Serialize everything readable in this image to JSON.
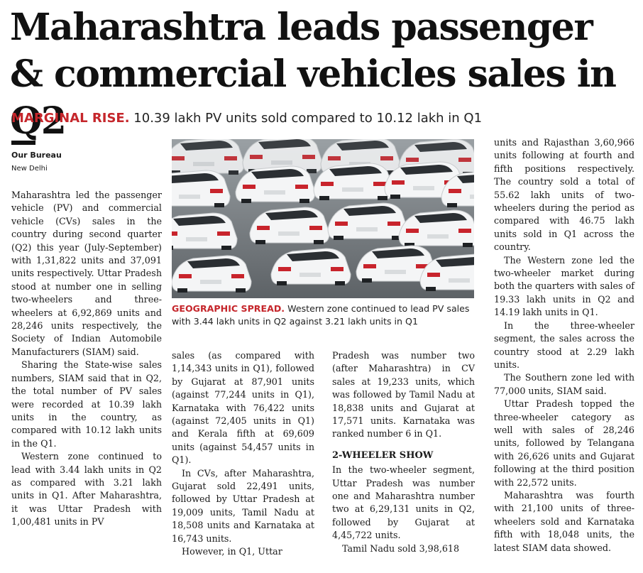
{
  "headline": "Maharashtra leads passenger & commercial vehicles sales in Q2",
  "subhead": {
    "kicker": "MARGINAL RISE.",
    "text": " 10.39 lakh PV units sold compared to 10.12 lakh in Q1"
  },
  "byline": "Our Bureau",
  "dateline": "New Delhi",
  "photo": {
    "icon": "parked-white-cars-photo",
    "caption_kicker": "GEOGRAPHIC SPREAD.",
    "caption_text": " Western zone continued to lead PV sales with 3.44 lakh units in Q2 against 3.21 lakh units in Q1"
  },
  "article": {
    "p1": "Maharashtra led the passenger vehicle (PV) and commercial vehicle (CVs) sales in the country during second quarter (Q2) this year (July-September) with 1,31,822 units and 37,091 units respectively. Uttar Pradesh stood at number one in selling two-wheelers and three-wheelers at 6,92,869 units and 28,246 units respectively, the Society of Indian Automobile Manufacturers (SIAM) said.",
    "p2": "Sharing the State-wise sales numbers, SIAM said that in Q2, the total number of PV sales were recorded at 10.39 lakh units in the country, as compared with 10.12 lakh units in the Q1.",
    "p3a": "Western zone continued to lead with 3.44 lakh units in Q2 as compared with 3.21 lakh units in Q1. After Maharashtra, it was Uttar Pradesh with 1,00,481 units in PV",
    "p3b": "sales (as compared with 1,14,343 units in Q1), followed by Gujarat at 87,901 units (against 77,244 units in Q1), Karnataka with 76,422 units (against 72,405 units in Q1) and Kerala fifth at 69,609 units (against 54,457 units in Q1).",
    "p4": "In CVs, after Maharashtra, Gujarat sold 22,491 units, followed by Uttar Pradesh at 19,009 units, Tamil Nadu at 18,508 units and Karnataka at 16,743 units.",
    "p5a": "However, in Q1, Uttar",
    "p5b": "Pradesh was number two (after Maharashtra) in CV sales at 19,233 units, which was followed by Tamil Nadu at 18,838 units and Gujarat at 17,571 units. Karnataka was ranked number 6 in Q1.",
    "subhead2": "2-WHEELER SHOW",
    "p6": "In the two-wheeler segment, Uttar Pradesh was number one and Maharashtra number two at 6,29,131 units in Q2, followed by Gujarat at 4,45,722 units.",
    "p7a": "Tamil Nadu sold 3,98,618",
    "p7b": "units and Rajasthan 3,60,966 units following at fourth and fifth positions respectively. The country sold a total of 55.62 lakh units of two-wheelers during the period as compared with 46.75 lakh units sold in Q1 across the country.",
    "p8": "The Western zone led the two-wheeler market during both the quarters with sales of 19.33 lakh units in Q2 and 14.19 lakh units in Q1.",
    "p9": "In the three-wheeler segment, the sales across the country stood at 2.29 lakh units.",
    "p10": "The Southern zone led with 77,000 units, SIAM said.",
    "p11": "Uttar Pradesh topped the three-wheeler category as well with sales of 28,246 units, followed by Telangana with 26,626 units and Gujarat following at the third position with 22,572 units.",
    "p12": "Maharashtra was fourth with 21,100 units of three-wheelers sold and Karnataka fifth with 18,048 units, the latest SIAM data showed."
  }
}
